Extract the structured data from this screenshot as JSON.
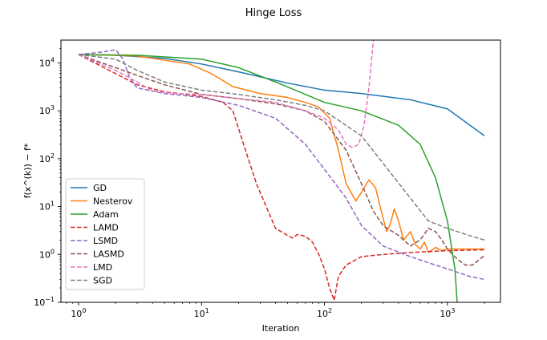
{
  "chart_data": {
    "type": "line",
    "title": "Hinge Loss",
    "xlabel": "Iteration",
    "ylabel": "f(x^(k)) − f*",
    "xscale": "log",
    "yscale": "log",
    "xlim": [
      0.72,
      2700
    ],
    "ylim": [
      0.1,
      30000
    ],
    "x_ticks": [
      {
        "value": 1,
        "base": "10",
        "exp": "0"
      },
      {
        "value": 10,
        "base": "10",
        "exp": "1"
      },
      {
        "value": 100,
        "base": "10",
        "exp": "2"
      },
      {
        "value": 1000,
        "base": "10",
        "exp": "3"
      }
    ],
    "y_ticks": [
      {
        "value": 0.1,
        "base": "10",
        "exp": "−1"
      },
      {
        "value": 1,
        "base": "10",
        "exp": "0"
      },
      {
        "value": 10,
        "base": "10",
        "exp": "1"
      },
      {
        "value": 100,
        "base": "10",
        "exp": "2"
      },
      {
        "value": 1000,
        "base": "10",
        "exp": "3"
      },
      {
        "value": 10000,
        "base": "10",
        "exp": "4"
      }
    ],
    "grid": false,
    "legend_position": "lower-left",
    "series": [
      {
        "name": "GD",
        "color": "#1f77b4",
        "dash": "solid",
        "points": [
          [
            1,
            15000
          ],
          [
            2,
            14500
          ],
          [
            5,
            12500
          ],
          [
            10,
            9500
          ],
          [
            20,
            6500
          ],
          [
            50,
            3800
          ],
          [
            100,
            2700
          ],
          [
            200,
            2300
          ],
          [
            500,
            1700
          ],
          [
            1000,
            1100
          ],
          [
            2000,
            300
          ]
        ]
      },
      {
        "name": "Nesterov",
        "color": "#ff7f0e",
        "dash": "solid",
        "points": [
          [
            1,
            15000
          ],
          [
            3,
            14000
          ],
          [
            8,
            9500
          ],
          [
            12,
            6000
          ],
          [
            18,
            3200
          ],
          [
            30,
            2300
          ],
          [
            50,
            1900
          ],
          [
            70,
            1500
          ],
          [
            90,
            1200
          ],
          [
            110,
            700
          ],
          [
            130,
            150
          ],
          [
            150,
            30
          ],
          [
            180,
            13
          ],
          [
            200,
            20
          ],
          [
            230,
            36
          ],
          [
            260,
            25
          ],
          [
            290,
            8
          ],
          [
            320,
            3
          ],
          [
            340,
            4
          ],
          [
            370,
            9
          ],
          [
            400,
            5
          ],
          [
            440,
            2
          ],
          [
            500,
            3
          ],
          [
            550,
            1.6
          ],
          [
            600,
            1.3
          ],
          [
            650,
            1.8
          ],
          [
            700,
            1.1
          ],
          [
            800,
            1.4
          ],
          [
            900,
            1.2
          ],
          [
            1000,
            1.3
          ],
          [
            2000,
            1.3
          ]
        ]
      },
      {
        "name": "Adam",
        "color": "#2ca02c",
        "dash": "solid",
        "points": [
          [
            1,
            15000
          ],
          [
            3,
            14500
          ],
          [
            10,
            12000
          ],
          [
            20,
            8000
          ],
          [
            40,
            4000
          ],
          [
            70,
            2200
          ],
          [
            100,
            1500
          ],
          [
            200,
            1000
          ],
          [
            400,
            500
          ],
          [
            600,
            200
          ],
          [
            800,
            40
          ],
          [
            1000,
            5
          ],
          [
            1150,
            0.5
          ],
          [
            1200,
            0.1
          ]
        ]
      },
      {
        "name": "LAMD",
        "color": "#d62728",
        "dash": "dashed",
        "points": [
          [
            1,
            15000
          ],
          [
            2,
            6000
          ],
          [
            3,
            3500
          ],
          [
            5,
            2500
          ],
          [
            10,
            2000
          ],
          [
            15,
            1500
          ],
          [
            18,
            1000
          ],
          [
            22,
            200
          ],
          [
            28,
            30
          ],
          [
            40,
            3.5
          ],
          [
            50,
            2.5
          ],
          [
            55,
            2.2
          ],
          [
            60,
            2.6
          ],
          [
            70,
            2.4
          ],
          [
            80,
            1.8
          ],
          [
            90,
            1.0
          ],
          [
            100,
            0.5
          ],
          [
            110,
            0.2
          ],
          [
            120,
            0.11
          ],
          [
            130,
            0.35
          ],
          [
            150,
            0.6
          ],
          [
            200,
            0.9
          ],
          [
            300,
            1.0
          ],
          [
            500,
            1.1
          ],
          [
            1000,
            1.2
          ],
          [
            2000,
            1.25
          ]
        ]
      },
      {
        "name": "LSMD",
        "color": "#9467bd",
        "dash": "dashed",
        "points": [
          [
            1,
            15000
          ],
          [
            1.6,
            17000
          ],
          [
            2,
            19000
          ],
          [
            2.3,
            12000
          ],
          [
            2.6,
            5000
          ],
          [
            3,
            3000
          ],
          [
            5,
            2300
          ],
          [
            10,
            1900
          ],
          [
            20,
            1300
          ],
          [
            40,
            700
          ],
          [
            70,
            200
          ],
          [
            100,
            60
          ],
          [
            150,
            15
          ],
          [
            200,
            4
          ],
          [
            300,
            1.5
          ],
          [
            500,
            0.9
          ],
          [
            800,
            0.6
          ],
          [
            1000,
            0.5
          ],
          [
            1500,
            0.35
          ],
          [
            2000,
            0.3
          ]
        ]
      },
      {
        "name": "LASMD",
        "color": "#8c564b",
        "dash": "dashed",
        "points": [
          [
            1,
            15000
          ],
          [
            2,
            8000
          ],
          [
            3,
            5500
          ],
          [
            5,
            3500
          ],
          [
            10,
            2200
          ],
          [
            20,
            1800
          ],
          [
            40,
            1400
          ],
          [
            70,
            1000
          ],
          [
            100,
            600
          ],
          [
            150,
            150
          ],
          [
            200,
            30
          ],
          [
            250,
            8
          ],
          [
            300,
            4
          ],
          [
            400,
            2.5
          ],
          [
            500,
            1.5
          ],
          [
            600,
            2.0
          ],
          [
            700,
            3.5
          ],
          [
            800,
            3.0
          ],
          [
            900,
            2.0
          ],
          [
            1000,
            1.3
          ],
          [
            1200,
            0.8
          ],
          [
            1400,
            0.6
          ],
          [
            1600,
            0.6
          ],
          [
            2000,
            0.95
          ]
        ]
      },
      {
        "name": "LMD",
        "color": "#e377c2",
        "dash": "dashed",
        "points": [
          [
            1,
            15000
          ],
          [
            2,
            7000
          ],
          [
            3,
            4000
          ],
          [
            4,
            2600
          ],
          [
            6,
            2300
          ],
          [
            10,
            2200
          ],
          [
            20,
            1800
          ],
          [
            40,
            1500
          ],
          [
            70,
            1000
          ],
          [
            100,
            700
          ],
          [
            130,
            400
          ],
          [
            150,
            200
          ],
          [
            170,
            170
          ],
          [
            190,
            200
          ],
          [
            210,
            500
          ],
          [
            230,
            3000
          ],
          [
            250,
            30000
          ]
        ]
      },
      {
        "name": "SGD",
        "color": "#7f7f7f",
        "dash": "dashed",
        "points": [
          [
            1,
            15000
          ],
          [
            2,
            12000
          ],
          [
            3,
            7000
          ],
          [
            5,
            4000
          ],
          [
            10,
            2700
          ],
          [
            20,
            2200
          ],
          [
            40,
            1700
          ],
          [
            70,
            1300
          ],
          [
            100,
            1000
          ],
          [
            200,
            300
          ],
          [
            300,
            80
          ],
          [
            500,
            15
          ],
          [
            700,
            5
          ],
          [
            1000,
            3.5
          ],
          [
            1500,
            2.5
          ],
          [
            2000,
            2.0
          ]
        ]
      }
    ]
  }
}
